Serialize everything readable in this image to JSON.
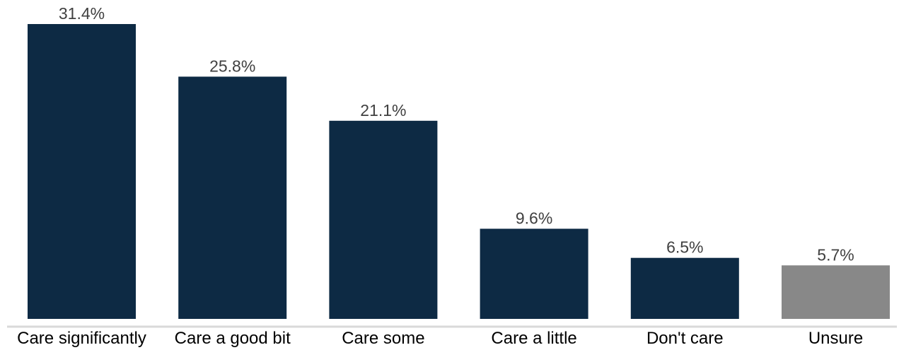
{
  "chart_data": {
    "type": "bar",
    "title": "",
    "xlabel": "",
    "ylabel": "",
    "categories": [
      "Care significantly",
      "Care a good bit",
      "Care some",
      "Care a little",
      "Don't care",
      "Unsure"
    ],
    "values": [
      31.4,
      25.8,
      21.1,
      9.6,
      6.5,
      5.7
    ],
    "value_labels": [
      "31.4%",
      "25.8%",
      "21.1%",
      "9.6%",
      "6.5%",
      "5.7%"
    ],
    "ylim": [
      0,
      31.4
    ],
    "grid": false,
    "legend": "none",
    "colors": {
      "primary": "#0d2a44",
      "muted": "#888888",
      "axis": "#d9d9d9"
    },
    "bar_colors": [
      "#0d2a44",
      "#0d2a44",
      "#0d2a44",
      "#0d2a44",
      "#0d2a44",
      "#888888"
    ]
  }
}
